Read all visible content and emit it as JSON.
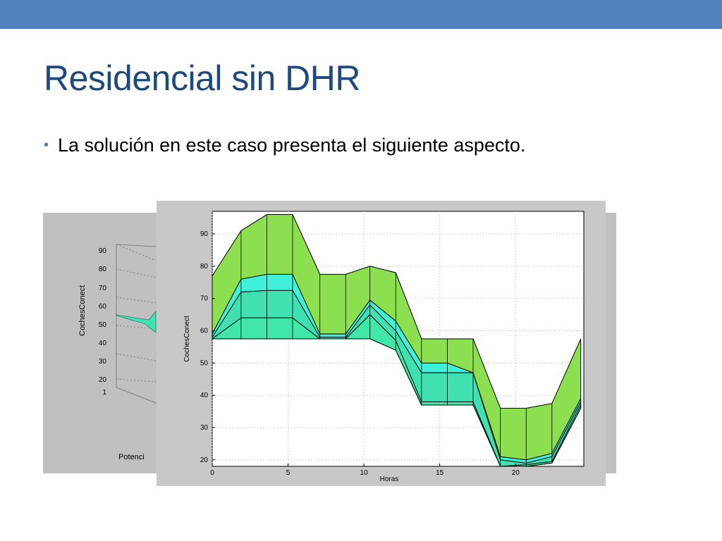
{
  "slide": {
    "title": "Residencial sin DHR",
    "bullet": "La solución en este caso presenta el siguiente aspecto."
  },
  "colors": {
    "topbar": "#4f81bd",
    "title": "#1f497d",
    "figure_bg": "#c0c0c0"
  },
  "back_figure": {
    "ylabel": "CochesConect",
    "yticks": [
      "90",
      "80",
      "70",
      "60",
      "50",
      "40",
      "30",
      "20",
      "1"
    ],
    "xlabel_partial": "Potenci"
  },
  "chart_data": {
    "type": "area",
    "xlabel": "Horas",
    "ylabel": "CochesConect",
    "xlim": [
      0,
      24.5
    ],
    "ylim": [
      18,
      97
    ],
    "xticks": [
      0,
      5,
      10,
      15,
      20
    ],
    "yticks": [
      20,
      30,
      40,
      50,
      60,
      70,
      80,
      90
    ],
    "grid": true,
    "x": [
      0,
      1.9,
      3.6,
      5.3,
      7.1,
      8.8,
      10.4,
      12.1,
      13.8,
      15.5,
      17.2,
      19.0,
      20.7,
      22.4,
      24.3
    ],
    "series": [
      {
        "values": [
          57.5,
          57.5,
          57.5,
          57.5,
          57.5,
          57.5,
          57.5,
          54.0,
          37.0,
          37.0,
          37.0,
          18.0,
          18.0,
          19.0,
          36.0
        ],
        "color": "#40e8a0"
      },
      {
        "values": [
          57.5,
          64.0,
          64.0,
          64.0,
          57.5,
          57.5,
          65.0,
          57.0,
          38.0,
          38.0,
          38.0,
          18.0,
          18.5,
          19.5,
          37.0
        ],
        "color": "#3fe8a8"
      },
      {
        "values": [
          58.0,
          72.0,
          72.5,
          72.5,
          58.0,
          58.0,
          68.0,
          60.0,
          47.0,
          47.0,
          47.0,
          20.0,
          19.0,
          21.0,
          38.0
        ],
        "color": "#40e0b0"
      },
      {
        "values": [
          59.0,
          76.0,
          77.5,
          77.5,
          59.0,
          59.0,
          69.5,
          63.0,
          50.0,
          50.0,
          47.0,
          21.0,
          20.0,
          22.0,
          39.0
        ],
        "color": "#40f0d8"
      },
      {
        "values": [
          77.0,
          91.0,
          96.0,
          96.0,
          77.5,
          77.5,
          80.0,
          78.0,
          57.5,
          57.5,
          57.5,
          36.0,
          36.0,
          37.5,
          57.5
        ],
        "color": "#8ce050"
      }
    ]
  }
}
